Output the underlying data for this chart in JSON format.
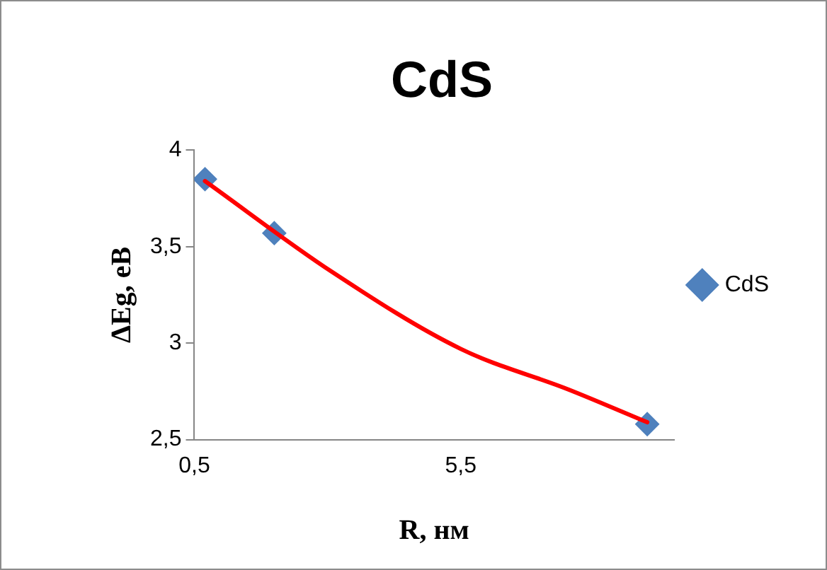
{
  "chart_data": {
    "type": "scatter",
    "title": "CdS",
    "xlabel": "R, нм",
    "ylabel": "ΔEg, eВ",
    "xlim": [
      0.5,
      9.5
    ],
    "xticks": [
      {
        "value": 0.5,
        "label": "0,5"
      },
      {
        "value": 5.5,
        "label": "5,5"
      }
    ],
    "ylim": [
      2.5,
      4
    ],
    "yticks": [
      {
        "value": 2.5,
        "label": "2,5"
      },
      {
        "value": 3,
        "label": "3"
      },
      {
        "value": 3.5,
        "label": "3,5"
      },
      {
        "value": 4,
        "label": "4"
      }
    ],
    "grid": false,
    "legend": "right",
    "marker": "diamond",
    "series": [
      {
        "type": "line",
        "color": "#ff0000",
        "x": [
          0.7,
          3.08,
          5.5,
          7.52,
          9.0
        ],
        "values": [
          3.84,
          3.37,
          2.97,
          2.76,
          2.59
        ],
        "marker": "none",
        "line_style": "solid"
      },
      {
        "type": "scatter",
        "name": "CdS",
        "color": "#4f81bd",
        "x": [
          0.7,
          2.0,
          9.0
        ],
        "values": [
          3.85,
          3.57,
          2.58
        ]
      }
    ]
  }
}
